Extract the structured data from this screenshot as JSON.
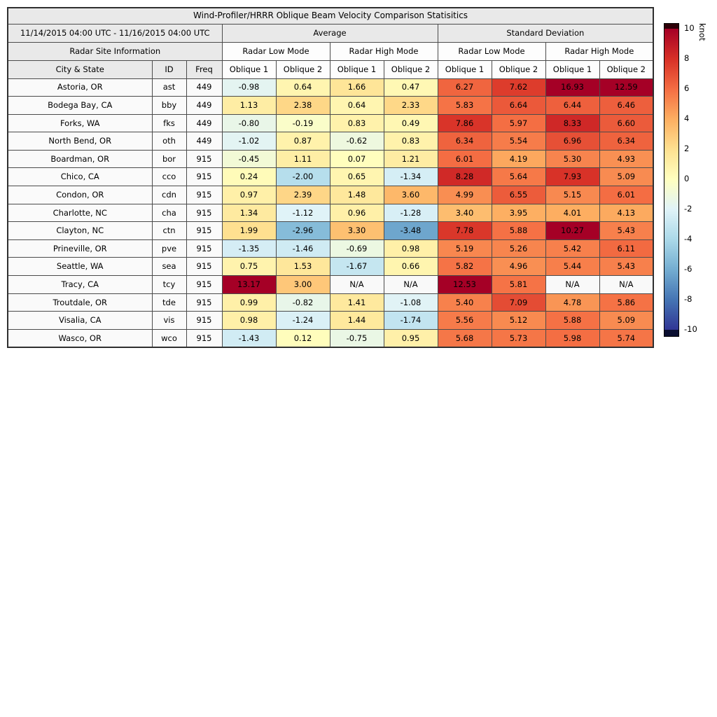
{
  "title": "Wind-Profiler/HRRR Oblique Beam Velocity Comparison Statisitics",
  "date_range": "11/14/2015 04:00 UTC - 11/16/2015 04:00 UTC",
  "headers": {
    "average": "Average",
    "std_dev": "Standard Deviation",
    "site_info": "Radar Site Information",
    "low_mode": "Radar Low Mode",
    "high_mode": "Radar High Mode",
    "city_state": "City & State",
    "id": "ID",
    "freq": "Freq",
    "oblique1": "Oblique 1",
    "oblique2": "Oblique 2"
  },
  "colorbar": {
    "label": "knot",
    "vmin": -10,
    "vmax": 10,
    "tick_labels": [
      "10",
      "8",
      "6",
      "4",
      "2",
      "0",
      "-2",
      "-4",
      "-6",
      "-8",
      "-10"
    ],
    "gradient_colors": [
      "#a50026",
      "#d73027",
      "#f46d43",
      "#fdae61",
      "#fee090",
      "#ffffbf",
      "#e0f3f8",
      "#abd9e9",
      "#74add1",
      "#4575b4",
      "#313695"
    ],
    "over_cap_color": "#2e0008",
    "under_cap_color": "#0a0e30"
  },
  "chart_data": {
    "type": "table",
    "units": "knot",
    "column_groups": [
      "Average",
      "Standard Deviation"
    ],
    "mode_groups": [
      "Radar Low Mode",
      "Radar High Mode"
    ],
    "value_columns": [
      "Oblique 1",
      "Oblique 2"
    ],
    "columns": [
      "City & State",
      "ID",
      "Freq",
      "Avg Low Oblique 1",
      "Avg Low Oblique 2",
      "Avg High Oblique 1",
      "Avg High Oblique 2",
      "Std Low Oblique 1",
      "Std Low Oblique 2",
      "Std High Oblique 1",
      "Std High Oblique 2"
    ],
    "rows": [
      {
        "city": "Astoria, OR",
        "id": "ast",
        "freq": "449",
        "values": [
          "-0.98",
          "0.64",
          "1.66",
          "0.47",
          "6.27",
          "7.62",
          "16.93",
          "12.59"
        ]
      },
      {
        "city": "Bodega Bay, CA",
        "id": "bby",
        "freq": "449",
        "values": [
          "1.13",
          "2.38",
          "0.64",
          "2.33",
          "5.83",
          "6.64",
          "6.44",
          "6.46"
        ]
      },
      {
        "city": "Forks, WA",
        "id": "fks",
        "freq": "449",
        "values": [
          "-0.80",
          "-0.19",
          "0.83",
          "0.49",
          "7.86",
          "5.97",
          "8.33",
          "6.60"
        ]
      },
      {
        "city": "North Bend, OR",
        "id": "oth",
        "freq": "449",
        "values": [
          "-1.02",
          "0.87",
          "-0.62",
          "0.83",
          "6.34",
          "5.54",
          "6.96",
          "6.34"
        ]
      },
      {
        "city": "Boardman, OR",
        "id": "bor",
        "freq": "915",
        "values": [
          "-0.45",
          "1.11",
          "0.07",
          "1.21",
          "6.01",
          "4.19",
          "5.30",
          "4.93"
        ]
      },
      {
        "city": "Chico, CA",
        "id": "cco",
        "freq": "915",
        "values": [
          "0.24",
          "-2.00",
          "0.65",
          "-1.34",
          "8.28",
          "5.64",
          "7.93",
          "5.09"
        ]
      },
      {
        "city": "Condon, OR",
        "id": "cdn",
        "freq": "915",
        "values": [
          "0.97",
          "2.39",
          "1.48",
          "3.60",
          "4.99",
          "6.55",
          "5.15",
          "6.01"
        ]
      },
      {
        "city": "Charlotte, NC",
        "id": "cha",
        "freq": "915",
        "values": [
          "1.34",
          "-1.12",
          "0.96",
          "-1.28",
          "3.40",
          "3.95",
          "4.01",
          "4.13"
        ]
      },
      {
        "city": "Clayton, NC",
        "id": "ctn",
        "freq": "915",
        "values": [
          "1.99",
          "-2.96",
          "3.30",
          "-3.48",
          "7.78",
          "5.88",
          "10.27",
          "5.43"
        ]
      },
      {
        "city": "Prineville, OR",
        "id": "pve",
        "freq": "915",
        "values": [
          "-1.35",
          "-1.46",
          "-0.69",
          "0.98",
          "5.19",
          "5.26",
          "5.42",
          "6.11"
        ]
      },
      {
        "city": "Seattle, WA",
        "id": "sea",
        "freq": "915",
        "values": [
          "0.75",
          "1.53",
          "-1.67",
          "0.66",
          "5.82",
          "4.96",
          "5.44",
          "5.43"
        ]
      },
      {
        "city": "Tracy, CA",
        "id": "tcy",
        "freq": "915",
        "values": [
          "13.17",
          "3.00",
          "N/A",
          "N/A",
          "12.53",
          "5.81",
          "N/A",
          "N/A"
        ]
      },
      {
        "city": "Troutdale, OR",
        "id": "tde",
        "freq": "915",
        "values": [
          "0.99",
          "-0.82",
          "1.41",
          "-1.08",
          "5.40",
          "7.09",
          "4.78",
          "5.86"
        ]
      },
      {
        "city": "Visalia, CA",
        "id": "vis",
        "freq": "915",
        "values": [
          "0.98",
          "-1.24",
          "1.44",
          "-1.74",
          "5.56",
          "5.12",
          "5.88",
          "5.09"
        ]
      },
      {
        "city": "Wasco, OR",
        "id": "wco",
        "freq": "915",
        "values": [
          "-1.43",
          "0.12",
          "-0.75",
          "0.95",
          "5.68",
          "5.73",
          "5.98",
          "5.74"
        ]
      }
    ]
  }
}
